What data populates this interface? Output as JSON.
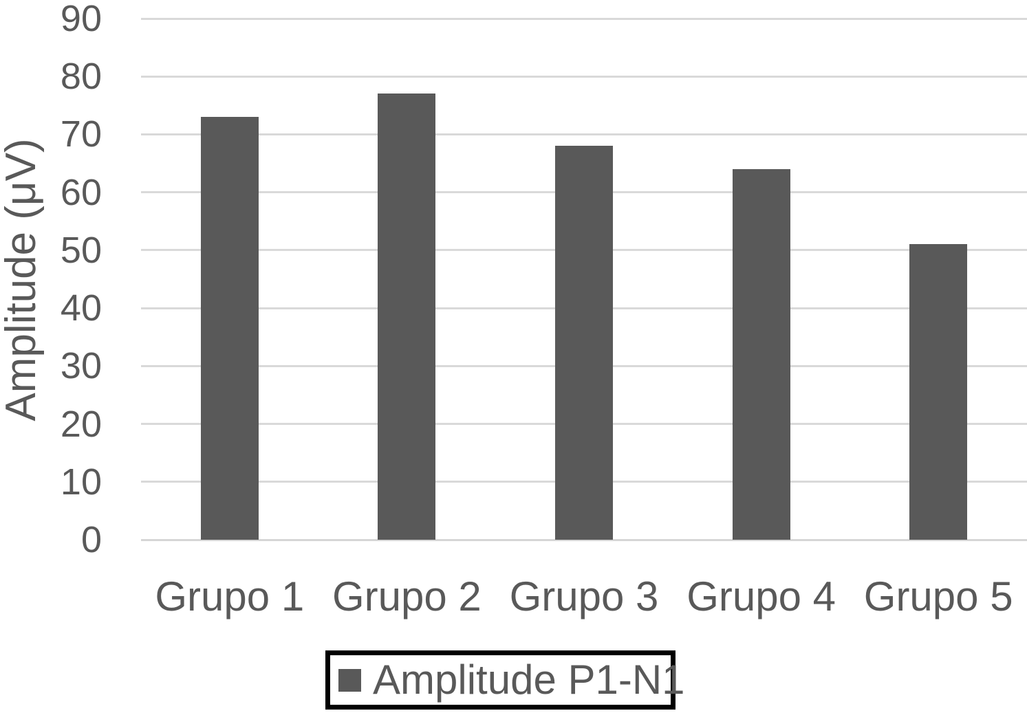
{
  "chart_data": {
    "type": "bar",
    "title": "",
    "categories": [
      "Grupo 1",
      "Grupo 2",
      "Grupo 3",
      "Grupo 4",
      "Grupo 5"
    ],
    "series": [
      {
        "name": "Amplitude P1-N1",
        "values": [
          73,
          77,
          68,
          64,
          51
        ]
      }
    ],
    "xlabel": "",
    "ylabel": "Amplitude (μV)",
    "ylim": [
      0,
      90
    ],
    "yticks": [
      0,
      10,
      20,
      30,
      40,
      50,
      60,
      70,
      80,
      90
    ],
    "grid": true,
    "legend_position": "bottom-center",
    "legend_border": true,
    "colors": {
      "bar": "#595959",
      "text": "#595959",
      "gridline": "#d9d9d9",
      "axis_line": "#d6d6d6",
      "legend_border": "#000000",
      "background": "#ffffff"
    }
  }
}
